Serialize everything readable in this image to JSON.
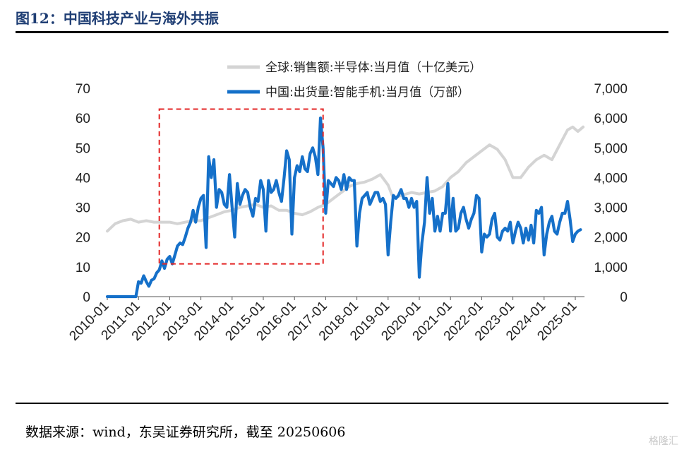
{
  "header": {
    "title": "图12：中国科技产业与海外共振"
  },
  "footer": {
    "source": "数据来源：wind，东吴证券研究所，截至 20250606",
    "watermark": "格隆汇"
  },
  "colors": {
    "global_series": "#d4d4d4",
    "china_series": "#1570c9",
    "highlight_box": "#e32626"
  },
  "chart_data": {
    "type": "line",
    "x_tick_labels": [
      "2010-01",
      "2011-01",
      "2012-01",
      "2013-01",
      "2014-01",
      "2015-01",
      "2016-01",
      "2017-01",
      "2018-01",
      "2019-01",
      "2020-01",
      "2021-01",
      "2022-01",
      "2023-01",
      "2024-01",
      "2025-01"
    ],
    "y_left": {
      "ticks": [
        "0",
        "10",
        "20",
        "30",
        "40",
        "50",
        "60",
        "70"
      ],
      "range": [
        0,
        70
      ]
    },
    "y_right": {
      "ticks": [
        "0",
        "1,000",
        "2,000",
        "3,000",
        "4,000",
        "5,000",
        "6,000",
        "7,000"
      ],
      "range": [
        0,
        7000
      ]
    },
    "legend_placement": "top-center",
    "grid": false,
    "highlight": {
      "style": "dashed red rectangle",
      "x_range": [
        "2011-09",
        "2016-12"
      ],
      "y_range_left": [
        11,
        63
      ]
    },
    "series": [
      {
        "name": "全球:销售额:半导体:当月值（十亿美元）",
        "axis": "left",
        "points": [
          [
            "2010-01",
            22
          ],
          [
            "2010-04",
            24.5
          ],
          [
            "2010-07",
            25.5
          ],
          [
            "2010-10",
            26
          ],
          [
            "2011-01",
            25
          ],
          [
            "2011-04",
            25.5
          ],
          [
            "2011-07",
            25
          ],
          [
            "2011-10",
            25
          ],
          [
            "2012-01",
            25
          ],
          [
            "2012-04",
            24.5
          ],
          [
            "2012-07",
            25
          ],
          [
            "2012-10",
            25.5
          ],
          [
            "2013-01",
            25.5
          ],
          [
            "2013-04",
            26.5
          ],
          [
            "2013-07",
            27.5
          ],
          [
            "2013-10",
            28.5
          ],
          [
            "2014-01",
            29
          ],
          [
            "2014-04",
            30
          ],
          [
            "2014-07",
            30.5
          ],
          [
            "2014-10",
            31
          ],
          [
            "2015-01",
            30
          ],
          [
            "2015-04",
            30.5
          ],
          [
            "2015-07",
            29
          ],
          [
            "2015-10",
            29
          ],
          [
            "2016-01",
            28
          ],
          [
            "2016-04",
            27.5
          ],
          [
            "2016-07",
            28.5
          ],
          [
            "2016-10",
            30
          ],
          [
            "2017-01",
            31
          ],
          [
            "2017-04",
            33
          ],
          [
            "2017-07",
            35
          ],
          [
            "2017-10",
            37
          ],
          [
            "2018-01",
            38
          ],
          [
            "2018-04",
            38.5
          ],
          [
            "2018-07",
            39.5
          ],
          [
            "2018-10",
            41
          ],
          [
            "2019-01",
            37.5
          ],
          [
            "2019-03",
            33
          ],
          [
            "2019-06",
            34
          ],
          [
            "2019-10",
            35
          ],
          [
            "2020-01",
            34.5
          ],
          [
            "2020-04",
            35
          ],
          [
            "2020-07",
            35.5
          ],
          [
            "2020-10",
            37
          ],
          [
            "2021-01",
            40
          ],
          [
            "2021-04",
            42
          ],
          [
            "2021-07",
            45
          ],
          [
            "2021-10",
            47
          ],
          [
            "2022-01",
            49
          ],
          [
            "2022-04",
            51
          ],
          [
            "2022-07",
            49.5
          ],
          [
            "2022-10",
            46
          ],
          [
            "2023-01",
            40
          ],
          [
            "2023-04",
            40
          ],
          [
            "2023-07",
            43.5
          ],
          [
            "2023-10",
            46
          ],
          [
            "2024-01",
            47.5
          ],
          [
            "2024-04",
            46
          ],
          [
            "2024-07",
            51
          ],
          [
            "2024-10",
            56
          ],
          [
            "2024-12",
            57
          ],
          [
            "2025-02",
            55.5
          ],
          [
            "2025-04",
            57
          ]
        ]
      },
      {
        "name": "中国:出货量:智能手机:当月值（万部）",
        "axis": "right",
        "points": [
          [
            "2010-01",
            0
          ],
          [
            "2010-06",
            0
          ],
          [
            "2010-12",
            0
          ],
          [
            "2011-01",
            500
          ],
          [
            "2011-02",
            450
          ],
          [
            "2011-03",
            700
          ],
          [
            "2011-04",
            500
          ],
          [
            "2011-05",
            350
          ],
          [
            "2011-06",
            550
          ],
          [
            "2011-07",
            600
          ],
          [
            "2011-08",
            800
          ],
          [
            "2011-09",
            900
          ],
          [
            "2011-10",
            1200
          ],
          [
            "2011-11",
            950
          ],
          [
            "2011-12",
            1250
          ],
          [
            "2012-01",
            1350
          ],
          [
            "2012-02",
            1100
          ],
          [
            "2012-03",
            1400
          ],
          [
            "2012-04",
            1700
          ],
          [
            "2012-05",
            1800
          ],
          [
            "2012-06",
            1750
          ],
          [
            "2012-07",
            2000
          ],
          [
            "2012-08",
            2300
          ],
          [
            "2012-09",
            2500
          ],
          [
            "2012-10",
            2900
          ],
          [
            "2012-11",
            2500
          ],
          [
            "2012-12",
            3000
          ],
          [
            "2013-01",
            3300
          ],
          [
            "2013-02",
            3400
          ],
          [
            "2013-03",
            1650
          ],
          [
            "2013-04",
            4700
          ],
          [
            "2013-05",
            4000
          ],
          [
            "2013-06",
            4600
          ],
          [
            "2013-07",
            3000
          ],
          [
            "2013-08",
            3600
          ],
          [
            "2013-09",
            3500
          ],
          [
            "2013-10",
            3100
          ],
          [
            "2013-11",
            3000
          ],
          [
            "2013-12",
            4100
          ],
          [
            "2014-01",
            3000
          ],
          [
            "2014-02",
            2000
          ],
          [
            "2014-03",
            3800
          ],
          [
            "2014-04",
            3100
          ],
          [
            "2014-05",
            3400
          ],
          [
            "2014-06",
            3600
          ],
          [
            "2014-07",
            3500
          ],
          [
            "2014-08",
            3000
          ],
          [
            "2014-09",
            2700
          ],
          [
            "2014-10",
            3300
          ],
          [
            "2014-11",
            3200
          ],
          [
            "2014-12",
            3900
          ],
          [
            "2015-01",
            3600
          ],
          [
            "2015-02",
            2200
          ],
          [
            "2015-03",
            3900
          ],
          [
            "2015-04",
            3500
          ],
          [
            "2015-05",
            3600
          ],
          [
            "2015-06",
            3900
          ],
          [
            "2015-07",
            3500
          ],
          [
            "2015-08",
            3200
          ],
          [
            "2015-09",
            4000
          ],
          [
            "2015-10",
            4900
          ],
          [
            "2015-11",
            4600
          ],
          [
            "2015-12",
            2100
          ],
          [
            "2016-01",
            4000
          ],
          [
            "2016-02",
            4400
          ],
          [
            "2016-03",
            4200
          ],
          [
            "2016-04",
            4700
          ],
          [
            "2016-05",
            4300
          ],
          [
            "2016-06",
            4200
          ],
          [
            "2016-07",
            4800
          ],
          [
            "2016-08",
            5000
          ],
          [
            "2016-09",
            4700
          ],
          [
            "2016-10",
            4100
          ],
          [
            "2016-11",
            6000
          ],
          [
            "2016-12",
            5000
          ],
          [
            "2017-01",
            2800
          ],
          [
            "2017-02",
            3900
          ],
          [
            "2017-03",
            3800
          ],
          [
            "2017-04",
            3700
          ],
          [
            "2017-05",
            4000
          ],
          [
            "2017-06",
            3900
          ],
          [
            "2017-07",
            3600
          ],
          [
            "2017-08",
            4100
          ],
          [
            "2017-09",
            3600
          ],
          [
            "2017-10",
            4000
          ],
          [
            "2017-11",
            3900
          ],
          [
            "2017-12",
            3900
          ],
          [
            "2018-01",
            1700
          ],
          [
            "2018-02",
            2800
          ],
          [
            "2018-03",
            3300
          ],
          [
            "2018-04",
            3400
          ],
          [
            "2018-05",
            3500
          ],
          [
            "2018-06",
            3100
          ],
          [
            "2018-07",
            3300
          ],
          [
            "2018-08",
            3500
          ],
          [
            "2018-09",
            3500
          ],
          [
            "2018-10",
            3200
          ],
          [
            "2018-11",
            3300
          ],
          [
            "2018-12",
            3100
          ],
          [
            "2019-01",
            1400
          ],
          [
            "2019-02",
            2500
          ],
          [
            "2019-03",
            3400
          ],
          [
            "2019-04",
            3300
          ],
          [
            "2019-05",
            3400
          ],
          [
            "2019-06",
            3600
          ],
          [
            "2019-07",
            3300
          ],
          [
            "2019-08",
            3300
          ],
          [
            "2019-09",
            3000
          ],
          [
            "2019-10",
            3300
          ],
          [
            "2019-11",
            3000
          ],
          [
            "2019-12",
            3200
          ],
          [
            "2020-01",
            650
          ],
          [
            "2020-02",
            1800
          ],
          [
            "2020-03",
            2500
          ],
          [
            "2020-04",
            4000
          ],
          [
            "2020-05",
            2800
          ],
          [
            "2020-06",
            3300
          ],
          [
            "2020-07",
            2200
          ],
          [
            "2020-08",
            2700
          ],
          [
            "2020-09",
            2200
          ],
          [
            "2020-10",
            2800
          ],
          [
            "2020-11",
            2800
          ],
          [
            "2020-12",
            3800
          ],
          [
            "2021-01",
            2200
          ],
          [
            "2021-02",
            3300
          ],
          [
            "2021-03",
            2200
          ],
          [
            "2021-04",
            2300
          ],
          [
            "2021-05",
            2800
          ],
          [
            "2021-06",
            3000
          ],
          [
            "2021-07",
            2600
          ],
          [
            "2021-08",
            2300
          ],
          [
            "2021-09",
            2600
          ],
          [
            "2021-10",
            2800
          ],
          [
            "2021-11",
            3400
          ],
          [
            "2021-12",
            3300
          ],
          [
            "2022-01",
            1500
          ],
          [
            "2022-02",
            2100
          ],
          [
            "2022-03",
            2000
          ],
          [
            "2022-04",
            2100
          ],
          [
            "2022-05",
            2600
          ],
          [
            "2022-06",
            2800
          ],
          [
            "2022-07",
            2000
          ],
          [
            "2022-08",
            1900
          ],
          [
            "2022-09",
            2200
          ],
          [
            "2022-10",
            2300
          ],
          [
            "2022-11",
            2200
          ],
          [
            "2022-12",
            2500
          ],
          [
            "2023-01",
            1800
          ],
          [
            "2023-02",
            2200
          ],
          [
            "2023-03",
            2500
          ],
          [
            "2023-04",
            2300
          ],
          [
            "2023-05",
            1800
          ],
          [
            "2023-06",
            2300
          ],
          [
            "2023-07",
            1900
          ],
          [
            "2023-08",
            2400
          ],
          [
            "2023-09",
            1800
          ],
          [
            "2023-10",
            2900
          ],
          [
            "2023-11",
            2800
          ],
          [
            "2023-12",
            3000
          ],
          [
            "2024-01",
            1400
          ],
          [
            "2024-02",
            2100
          ],
          [
            "2024-03",
            2500
          ],
          [
            "2024-04",
            2700
          ],
          [
            "2024-05",
            2200
          ],
          [
            "2024-06",
            2100
          ],
          [
            "2024-07",
            2500
          ],
          [
            "2024-08",
            2800
          ],
          [
            "2024-09",
            2800
          ],
          [
            "2024-10",
            3200
          ],
          [
            "2024-11",
            2600
          ],
          [
            "2024-12",
            1850
          ],
          [
            "2025-01",
            2100
          ],
          [
            "2025-02",
            2200
          ],
          [
            "2025-03",
            2250
          ]
        ]
      }
    ]
  }
}
